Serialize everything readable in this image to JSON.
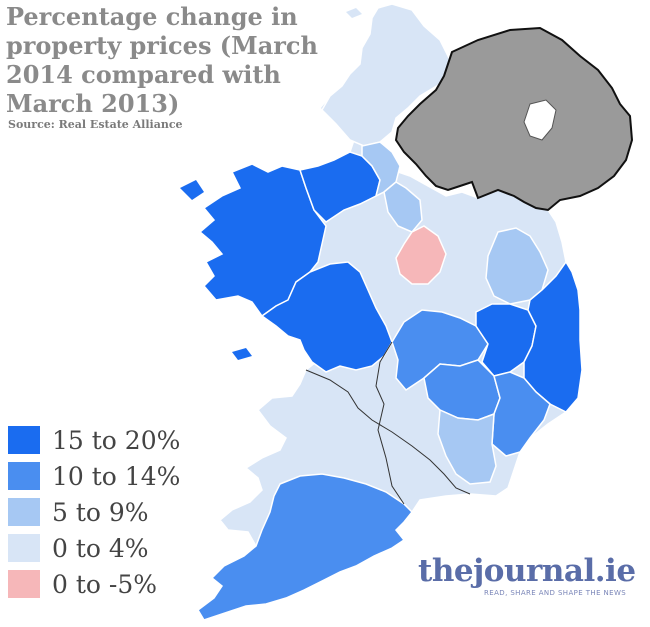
{
  "title": "Percentage change in property prices (March 2014 compared with March 2013)",
  "source": "Source: Real Estate Alliance",
  "legend": [
    {
      "label": "15 to 20%",
      "color": "#1a6cf0"
    },
    {
      "label": "10 to 14%",
      "color": "#4a8ef0"
    },
    {
      "label": "5 to 9%",
      "color": "#a6c8f3"
    },
    {
      "label": "0 to 4%",
      "color": "#d8e5f6"
    },
    {
      "label": "0 to -5%",
      "color": "#f6b7b9"
    }
  ],
  "northern_ireland_color": "#9a9a9a",
  "brand": {
    "prefix": "the",
    "name": "journal",
    "suffix": ".ie",
    "tagline": "READ, SHARE AND SHAPE THE NEWS"
  }
}
